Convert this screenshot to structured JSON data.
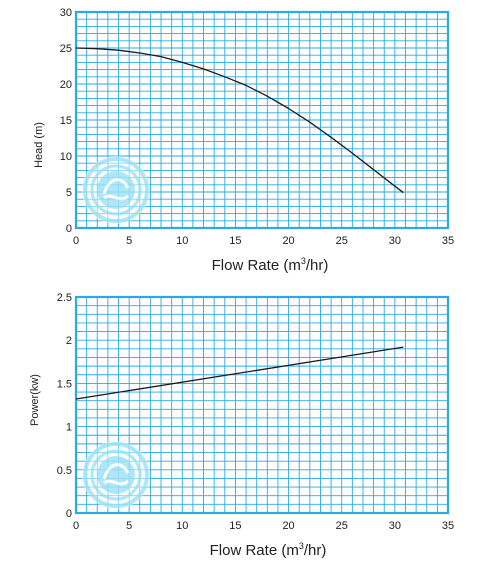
{
  "grid_color": "#2aa9e6",
  "curve_color": "#1a1a1a",
  "logo_color": "#9fe3f7",
  "chart_data": [
    {
      "type": "line",
      "xlabel_main": "Flow Rate (m",
      "xlabel_sup": "3",
      "xlabel_end": "/hr)",
      "ylabel": "Head (m)",
      "xlim": [
        0,
        35
      ],
      "ylim": [
        0,
        30
      ],
      "x_ticks": [
        "0",
        "5",
        "10",
        "15",
        "20",
        "25",
        "30",
        "35"
      ],
      "y_ticks": [
        "0",
        "5",
        "10",
        "15",
        "20",
        "25",
        "30"
      ],
      "x_ticks_num": [
        0,
        5,
        10,
        15,
        20,
        25,
        30,
        35
      ],
      "y_ticks_num": [
        0,
        5,
        10,
        15,
        20,
        25,
        30
      ],
      "x_minor_step": 1,
      "y_minor_step": 1,
      "grid": true,
      "series": [
        {
          "x": [
            0,
            2,
            4,
            6,
            8,
            10,
            12,
            14,
            16,
            18,
            20,
            22,
            24,
            26,
            28,
            30,
            30.8
          ],
          "y": [
            25.0,
            24.9,
            24.7,
            24.3,
            23.8,
            23.0,
            22.1,
            21.0,
            19.8,
            18.3,
            16.6,
            14.7,
            12.6,
            10.4,
            8.1,
            5.8,
            4.9
          ]
        }
      ]
    },
    {
      "type": "line",
      "xlabel_main": "Flow Rate (m",
      "xlabel_sup": "3",
      "xlabel_end": "/hr)",
      "ylabel": "Power(kw)",
      "xlim": [
        0,
        35
      ],
      "ylim": [
        0,
        2.5
      ],
      "x_ticks": [
        "0",
        "5",
        "10",
        "15",
        "20",
        "25",
        "30",
        "35"
      ],
      "y_ticks": [
        "0",
        "0.5",
        "1",
        "1.5",
        "2",
        "2.5"
      ],
      "x_ticks_num": [
        0,
        5,
        10,
        15,
        20,
        25,
        30,
        35
      ],
      "y_ticks_num": [
        0,
        0.5,
        1,
        1.5,
        2,
        2.5
      ],
      "x_minor_step": 1,
      "y_minor_step": 0.1,
      "grid": true,
      "series": [
        {
          "x": [
            0,
            30.8
          ],
          "y": [
            1.32,
            1.92
          ]
        }
      ]
    }
  ]
}
